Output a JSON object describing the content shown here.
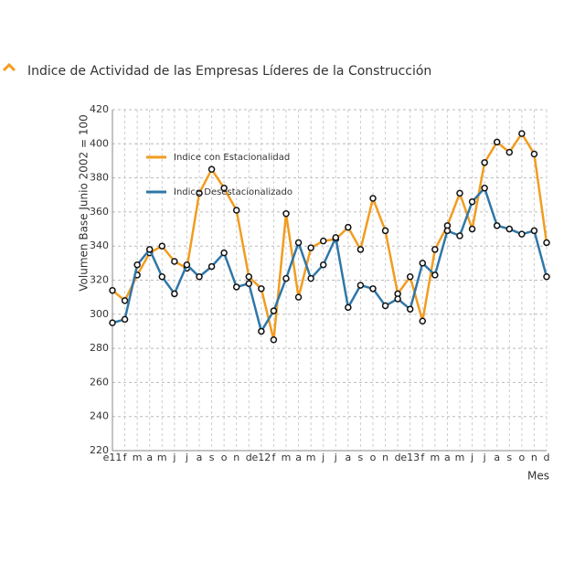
{
  "chart_data": {
    "type": "line",
    "title": "Indice de Actividad de las Empresas Líderes de la Construcción",
    "y_label": "Volumen Base Junio 2002 = 100",
    "x_label": "Mes",
    "categories": [
      "e11",
      "f",
      "m",
      "a",
      "m",
      "j",
      "j",
      "a",
      "s",
      "o",
      "n",
      "d",
      "e12",
      "f",
      "m",
      "a",
      "m",
      "j",
      "j",
      "a",
      "s",
      "o",
      "n",
      "d",
      "e13",
      "f",
      "m",
      "a",
      "m",
      "j",
      "j",
      "a",
      "s",
      "o",
      "n",
      "d"
    ],
    "series": [
      {
        "name": "Indice con Estacionalidad",
        "color": "#f29c1f",
        "values": [
          314,
          308,
          323,
          336,
          340,
          331,
          327,
          371,
          385,
          374,
          361,
          322,
          315,
          285,
          359,
          310,
          339,
          343,
          344,
          351,
          338,
          368,
          349,
          312,
          322,
          296,
          338,
          352,
          371,
          350,
          389,
          401,
          395,
          406,
          394,
          342
        ]
      },
      {
        "name": "Indice Desestacionalizado",
        "color": "#2f77a8",
        "values": [
          295,
          297,
          329,
          338,
          322,
          312,
          329,
          322,
          328,
          336,
          316,
          318,
          290,
          302,
          321,
          342,
          321,
          329,
          345,
          304,
          317,
          315,
          305,
          309,
          303,
          330,
          323,
          349,
          346,
          366,
          374,
          352,
          350,
          347,
          349,
          322
        ]
      }
    ],
    "ylim": [
      220,
      420
    ],
    "yticks": [
      220,
      240,
      260,
      280,
      300,
      320,
      340,
      360,
      380,
      400,
      420
    ],
    "grid": true
  }
}
